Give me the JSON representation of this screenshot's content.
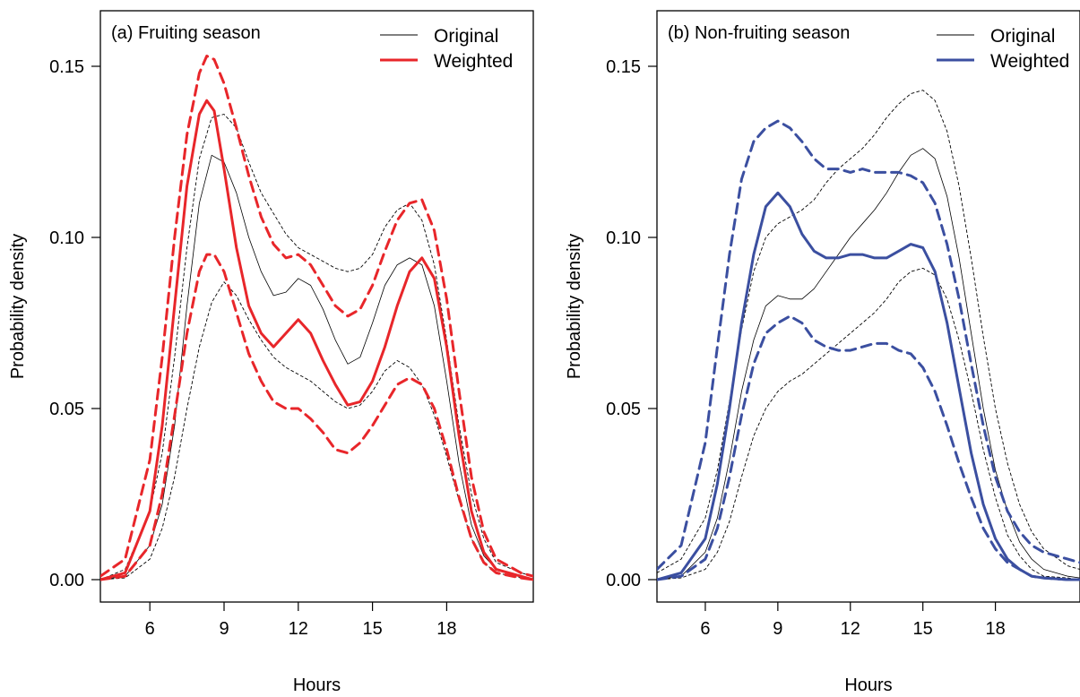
{
  "chart_data": [
    {
      "type": "line",
      "title": "(a) Fruiting season",
      "xlabel": "Hours",
      "ylabel": "Probability density",
      "xlim": [
        4,
        21.5
      ],
      "ylim": [
        0,
        0.16
      ],
      "xticks": [
        6,
        9,
        12,
        15,
        18
      ],
      "yticks": [
        "0.00",
        "0.05",
        "0.10",
        "0.15"
      ],
      "legend": {
        "placement": "top-right",
        "entries": [
          "Original",
          "Weighted"
        ]
      },
      "color": "#e8262a",
      "series": [
        {
          "name": "Original",
          "role": "estimate",
          "x": [
            4,
            5,
            6,
            6.5,
            7,
            7.5,
            8,
            8.5,
            9,
            9.5,
            10,
            10.5,
            11,
            11.5,
            12,
            12.5,
            13,
            13.5,
            14,
            14.5,
            15,
            15.5,
            16,
            16.5,
            17,
            17.5,
            18,
            18.5,
            19,
            19.5,
            20,
            21,
            21.5
          ],
          "y": [
            0,
            0.001,
            0.01,
            0.022,
            0.045,
            0.08,
            0.11,
            0.124,
            0.122,
            0.113,
            0.1,
            0.09,
            0.083,
            0.084,
            0.088,
            0.086,
            0.079,
            0.07,
            0.063,
            0.065,
            0.075,
            0.086,
            0.092,
            0.094,
            0.092,
            0.08,
            0.058,
            0.034,
            0.016,
            0.007,
            0.003,
            0.001,
            0
          ]
        },
        {
          "role": "upper-bound-original",
          "x": [
            4,
            5,
            6,
            6.5,
            7,
            7.5,
            8,
            8.5,
            9,
            9.5,
            10,
            10.5,
            11,
            11.5,
            12,
            12.5,
            13,
            13.5,
            14,
            14.5,
            15,
            15.5,
            16,
            16.5,
            17,
            17.5,
            18,
            18.5,
            19,
            19.5,
            20,
            21,
            21.5
          ],
          "y": [
            0,
            0.003,
            0.02,
            0.037,
            0.065,
            0.097,
            0.123,
            0.135,
            0.136,
            0.132,
            0.122,
            0.113,
            0.107,
            0.101,
            0.097,
            0.095,
            0.093,
            0.091,
            0.09,
            0.091,
            0.095,
            0.103,
            0.108,
            0.11,
            0.105,
            0.092,
            0.07,
            0.045,
            0.025,
            0.012,
            0.005,
            0.002,
            0.001
          ]
        },
        {
          "role": "lower-bound-original",
          "x": [
            4,
            5,
            6,
            6.5,
            7,
            7.5,
            8,
            8.5,
            9,
            9.5,
            10,
            10.5,
            11,
            11.5,
            12,
            12.5,
            13,
            13.5,
            14,
            14.5,
            15,
            15.5,
            16,
            16.5,
            17,
            17.5,
            18,
            18.5,
            19,
            19.5,
            20,
            21,
            21.5
          ],
          "y": [
            0,
            0.0005,
            0.006,
            0.015,
            0.03,
            0.05,
            0.068,
            0.081,
            0.087,
            0.083,
            0.076,
            0.07,
            0.065,
            0.062,
            0.06,
            0.058,
            0.055,
            0.052,
            0.05,
            0.051,
            0.055,
            0.061,
            0.064,
            0.062,
            0.057,
            0.048,
            0.036,
            0.023,
            0.012,
            0.005,
            0.002,
            0.0005,
            0
          ]
        },
        {
          "name": "Weighted",
          "role": "estimate",
          "x": [
            4,
            5,
            6,
            6.5,
            7,
            7.5,
            8,
            8.3,
            8.6,
            9,
            9.5,
            10,
            10.5,
            11,
            11.5,
            12,
            12.5,
            13,
            13.5,
            14,
            14.5,
            15,
            15.5,
            16,
            16.5,
            17,
            17.5,
            18,
            18.5,
            19,
            19.5,
            20,
            21,
            21.5
          ],
          "y": [
            0,
            0.002,
            0.02,
            0.045,
            0.08,
            0.115,
            0.136,
            0.14,
            0.137,
            0.12,
            0.097,
            0.08,
            0.072,
            0.068,
            0.072,
            0.076,
            0.072,
            0.064,
            0.057,
            0.051,
            0.052,
            0.058,
            0.068,
            0.08,
            0.09,
            0.094,
            0.088,
            0.068,
            0.042,
            0.02,
            0.008,
            0.003,
            0.001,
            0
          ]
        },
        {
          "role": "upper-bound-weighted",
          "x": [
            4,
            5,
            6,
            6.5,
            7,
            7.5,
            8,
            8.3,
            8.6,
            9,
            9.5,
            10,
            10.5,
            11,
            11.5,
            12,
            12.5,
            13,
            13.5,
            14,
            14.5,
            15,
            15.5,
            16,
            16.5,
            17,
            17.5,
            18,
            18.5,
            19,
            19.5,
            20,
            21,
            21.5
          ],
          "y": [
            0.001,
            0.006,
            0.035,
            0.065,
            0.1,
            0.13,
            0.148,
            0.153,
            0.152,
            0.145,
            0.132,
            0.118,
            0.106,
            0.098,
            0.094,
            0.095,
            0.092,
            0.086,
            0.08,
            0.077,
            0.079,
            0.086,
            0.096,
            0.105,
            0.11,
            0.111,
            0.102,
            0.082,
            0.055,
            0.03,
            0.014,
            0.006,
            0.002,
            0.001
          ]
        },
        {
          "role": "lower-bound-weighted",
          "x": [
            4,
            5,
            6,
            6.5,
            7,
            7.5,
            8,
            8.3,
            8.6,
            9,
            9.5,
            10,
            10.5,
            11,
            11.5,
            12,
            12.5,
            13,
            13.5,
            14,
            14.5,
            15,
            15.5,
            16,
            16.5,
            17,
            17.5,
            18,
            18.5,
            19,
            19.5,
            20,
            21,
            21.5
          ],
          "y": [
            0,
            0.001,
            0.01,
            0.025,
            0.048,
            0.072,
            0.09,
            0.095,
            0.095,
            0.09,
            0.078,
            0.066,
            0.058,
            0.052,
            0.05,
            0.05,
            0.047,
            0.043,
            0.038,
            0.037,
            0.04,
            0.045,
            0.051,
            0.057,
            0.059,
            0.057,
            0.05,
            0.038,
            0.024,
            0.012,
            0.005,
            0.002,
            0.0005,
            0
          ]
        }
      ]
    },
    {
      "type": "line",
      "title": "(b) Non-fruiting season",
      "xlabel": "Hours",
      "ylabel": "Probability density",
      "xlim": [
        4,
        21.5
      ],
      "ylim": [
        0,
        0.16
      ],
      "xticks": [
        6,
        9,
        12,
        15,
        18
      ],
      "yticks": [
        "0.00",
        "0.05",
        "0.10",
        "0.15"
      ],
      "legend": {
        "placement": "top-right",
        "entries": [
          "Original",
          "Weighted"
        ]
      },
      "color": "#3b4fa0",
      "series": [
        {
          "name": "Original",
          "role": "estimate",
          "x": [
            4,
            5,
            6,
            6.5,
            7,
            7.5,
            8,
            8.5,
            9,
            9.5,
            10,
            10.5,
            11,
            11.5,
            12,
            12.5,
            13,
            13.5,
            14,
            14.5,
            15,
            15.5,
            16,
            16.5,
            17,
            17.5,
            18,
            18.5,
            19,
            19.5,
            20,
            21,
            21.5
          ],
          "y": [
            0,
            0.001,
            0.008,
            0.018,
            0.035,
            0.055,
            0.07,
            0.08,
            0.083,
            0.082,
            0.082,
            0.085,
            0.09,
            0.095,
            0.1,
            0.104,
            0.108,
            0.113,
            0.119,
            0.124,
            0.126,
            0.123,
            0.112,
            0.094,
            0.072,
            0.05,
            0.032,
            0.02,
            0.011,
            0.006,
            0.003,
            0.001,
            0.0005
          ]
        },
        {
          "role": "upper-bound-original",
          "x": [
            4,
            5,
            6,
            6.5,
            7,
            7.5,
            8,
            8.5,
            9,
            9.5,
            10,
            10.5,
            11,
            11.5,
            12,
            12.5,
            13,
            13.5,
            14,
            14.5,
            15,
            15.5,
            16,
            16.5,
            17,
            17.5,
            18,
            18.5,
            19,
            19.5,
            20,
            21,
            21.5
          ],
          "y": [
            0.002,
            0.006,
            0.018,
            0.032,
            0.052,
            0.073,
            0.09,
            0.1,
            0.104,
            0.106,
            0.108,
            0.111,
            0.116,
            0.12,
            0.123,
            0.126,
            0.13,
            0.135,
            0.139,
            0.142,
            0.143,
            0.14,
            0.131,
            0.115,
            0.094,
            0.071,
            0.05,
            0.034,
            0.022,
            0.014,
            0.009,
            0.004,
            0.003
          ]
        },
        {
          "role": "lower-bound-original",
          "x": [
            4,
            5,
            6,
            6.5,
            7,
            7.5,
            8,
            8.5,
            9,
            9.5,
            10,
            10.5,
            11,
            11.5,
            12,
            12.5,
            13,
            13.5,
            14,
            14.5,
            15,
            15.5,
            16,
            16.5,
            17,
            17.5,
            18,
            18.5,
            19,
            19.5,
            20,
            21,
            21.5
          ],
          "y": [
            0,
            0.0005,
            0.003,
            0.008,
            0.017,
            0.03,
            0.042,
            0.05,
            0.055,
            0.058,
            0.06,
            0.063,
            0.066,
            0.069,
            0.072,
            0.075,
            0.078,
            0.082,
            0.087,
            0.09,
            0.091,
            0.089,
            0.082,
            0.07,
            0.055,
            0.038,
            0.024,
            0.013,
            0.007,
            0.003,
            0.001,
            0.0005,
            0
          ]
        },
        {
          "name": "Weighted",
          "role": "estimate",
          "x": [
            4,
            5,
            6,
            6.5,
            7,
            7.5,
            8,
            8.5,
            9,
            9.5,
            10,
            10.5,
            11,
            11.5,
            12,
            12.5,
            13,
            13.5,
            14,
            14.5,
            15,
            15.5,
            16,
            16.5,
            17,
            17.5,
            18,
            18.5,
            19,
            19.5,
            20,
            21,
            21.5
          ],
          "y": [
            0,
            0.002,
            0.012,
            0.028,
            0.05,
            0.075,
            0.095,
            0.109,
            0.113,
            0.109,
            0.101,
            0.096,
            0.094,
            0.094,
            0.095,
            0.095,
            0.094,
            0.094,
            0.096,
            0.098,
            0.097,
            0.09,
            0.075,
            0.056,
            0.037,
            0.022,
            0.012,
            0.006,
            0.003,
            0.001,
            0.0005,
            0,
            0
          ]
        },
        {
          "role": "upper-bound-weighted",
          "x": [
            4,
            5,
            6,
            6.5,
            7,
            7.5,
            8,
            8.5,
            9,
            9.5,
            10,
            10.5,
            11,
            11.5,
            12,
            12.5,
            13,
            13.5,
            14,
            14.5,
            15,
            15.5,
            16,
            16.5,
            17,
            17.5,
            18,
            18.5,
            19,
            19.5,
            20,
            21,
            21.5
          ],
          "y": [
            0.003,
            0.01,
            0.04,
            0.068,
            0.095,
            0.117,
            0.128,
            0.132,
            0.134,
            0.132,
            0.128,
            0.123,
            0.12,
            0.12,
            0.119,
            0.12,
            0.119,
            0.119,
            0.119,
            0.118,
            0.116,
            0.11,
            0.098,
            0.082,
            0.063,
            0.045,
            0.03,
            0.02,
            0.014,
            0.01,
            0.008,
            0.006,
            0.005
          ]
        },
        {
          "role": "lower-bound-weighted",
          "x": [
            4,
            5,
            6,
            6.5,
            7,
            7.5,
            8,
            8.5,
            9,
            9.5,
            10,
            10.5,
            11,
            11.5,
            12,
            12.5,
            13,
            13.5,
            14,
            14.5,
            15,
            15.5,
            16,
            16.5,
            17,
            17.5,
            18,
            18.5,
            19,
            19.5,
            20,
            21,
            21.5
          ],
          "y": [
            0,
            0.001,
            0.006,
            0.015,
            0.03,
            0.048,
            0.063,
            0.072,
            0.075,
            0.077,
            0.075,
            0.07,
            0.068,
            0.067,
            0.067,
            0.068,
            0.069,
            0.069,
            0.067,
            0.066,
            0.062,
            0.055,
            0.045,
            0.034,
            0.024,
            0.015,
            0.009,
            0.005,
            0.003,
            0.001,
            0.0005,
            0,
            0
          ]
        }
      ]
    }
  ]
}
